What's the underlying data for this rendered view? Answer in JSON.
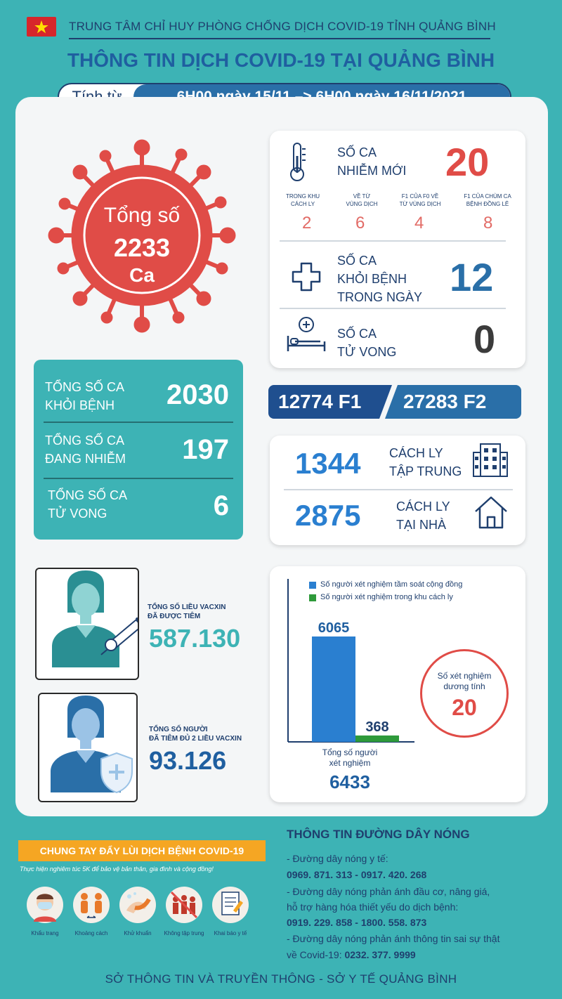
{
  "header": {
    "org": "TRUNG TÂM CHỈ HUY PHÒNG CHỐNG DỊCH COVID-19 TỈNH QUẢNG BÌNH",
    "title": "THÔNG TIN DỊCH COVID-19 TẠI QUẢNG BÌNH",
    "from_label": "Tính từ",
    "range": "6H00 ngày 15/11 –> 6H00 ngày 16/11/2021"
  },
  "total": {
    "l1": "Tổng số",
    "num": "2233",
    "l2": "Ca"
  },
  "new_cases": {
    "l1": "SỐ CA",
    "l2": "NHIỄM MỚI",
    "value": "20",
    "breakdown": [
      {
        "l1": "TRONG KHU",
        "l2": "CÁCH LY",
        "v": "2"
      },
      {
        "l1": "VỀ TỪ",
        "l2": "VÙNG DỊCH",
        "v": "6"
      },
      {
        "l1": "F1 CỦA F0 VỀ",
        "l2": "TỪ VÙNG DỊCH",
        "v": "4"
      },
      {
        "l1": "F1 CỦA CHÙM CA",
        "l2": "BỆNH ĐỒNG LÊ",
        "v": "8"
      }
    ]
  },
  "recovered_today": {
    "l1": "SỐ CA",
    "l2": "KHỎI BỆNH",
    "l3": "TRONG NGÀY",
    "value": "12"
  },
  "deaths_today": {
    "l1": "SỐ CA",
    "l2": "TỬ VONG",
    "value": "0"
  },
  "totals": [
    {
      "l1": "TỔNG SỐ CA",
      "l2": "KHỎI BỆNH",
      "v": "2030"
    },
    {
      "l1": "TỔNG SỐ CA",
      "l2": "ĐANG NHIỄM",
      "v": "197"
    },
    {
      "l1": "TỔNG SỐ CA",
      "l2": "TỬ VONG",
      "v": "6"
    }
  ],
  "contacts": {
    "f1": "12774 F1",
    "f2": "27283 F2"
  },
  "quarantine": [
    {
      "v": "1344",
      "l1": "CÁCH LY",
      "l2": "TẬP TRUNG"
    },
    {
      "v": "2875",
      "l1": "CÁCH LY",
      "l2": "TẠI NHÀ"
    }
  ],
  "vaccine": {
    "doses_l1": "TỔNG SỐ LIỀU VACXIN",
    "doses_l2": "ĐÃ ĐƯỢC TIÊM",
    "doses": "587.130",
    "full_l1": "TỔNG SỐ NGƯỜI",
    "full_l2": "ĐÃ TIÊM ĐỦ 2 LIỀU VACXIN",
    "full": "93.126"
  },
  "testing": {
    "legend1": "Số người xét nghiệm tầm soát cộng đồng",
    "legend2": "Số người xét nghiệm trong khu cách ly",
    "total_l1": "Tổng số người",
    "total_l2": "xét nghiệm",
    "total": "6433",
    "pos_l1": "Số xét nghiệm",
    "pos_l2": "dương tính",
    "pos": "20"
  },
  "chart_data": {
    "type": "bar",
    "categories": [
      "Số người xét nghiệm tầm soát cộng đồng",
      "Số người xét nghiệm trong khu cách ly"
    ],
    "values": [
      6065,
      368
    ],
    "colors": [
      "#2a7fd0",
      "#2e9a3a"
    ]
  },
  "campaign": {
    "title": "CHUNG TAY ĐẨY LÙI DỊCH BỆNH COVID-19",
    "sub": "Thực hiện nghiêm túc 5K để bảo vệ bản thân, gia đình và cộng đồng!",
    "icons": [
      "Khẩu trang",
      "Khoảng cách",
      "Khử khuẩn",
      "Không tập trung",
      "Khai báo y tế"
    ]
  },
  "hotline": {
    "title": "THÔNG TIN ĐƯỜNG DÂY NÓNG",
    "l1": "- Đường dây nóng y tế:",
    "n1": "0969. 871. 313   -   0917. 420. 268",
    "l2": "- Đường dây nóng phản ánh đầu cơ, nâng giá,",
    "l3": "hỗ trợ hàng hóa thiết yếu do dịch bệnh:",
    "n2": "0919. 229. 858   -   1800. 558. 873",
    "l4": "- Đường dây nóng phản ánh thông tin sai sự thật",
    "l5a": "về Covid-19:",
    "n3": "0232. 377. 9999"
  },
  "footer": "SỞ THÔNG TIN VÀ TRUYỀN THÔNG - SỞ Y TẾ QUẢNG BÌNH"
}
